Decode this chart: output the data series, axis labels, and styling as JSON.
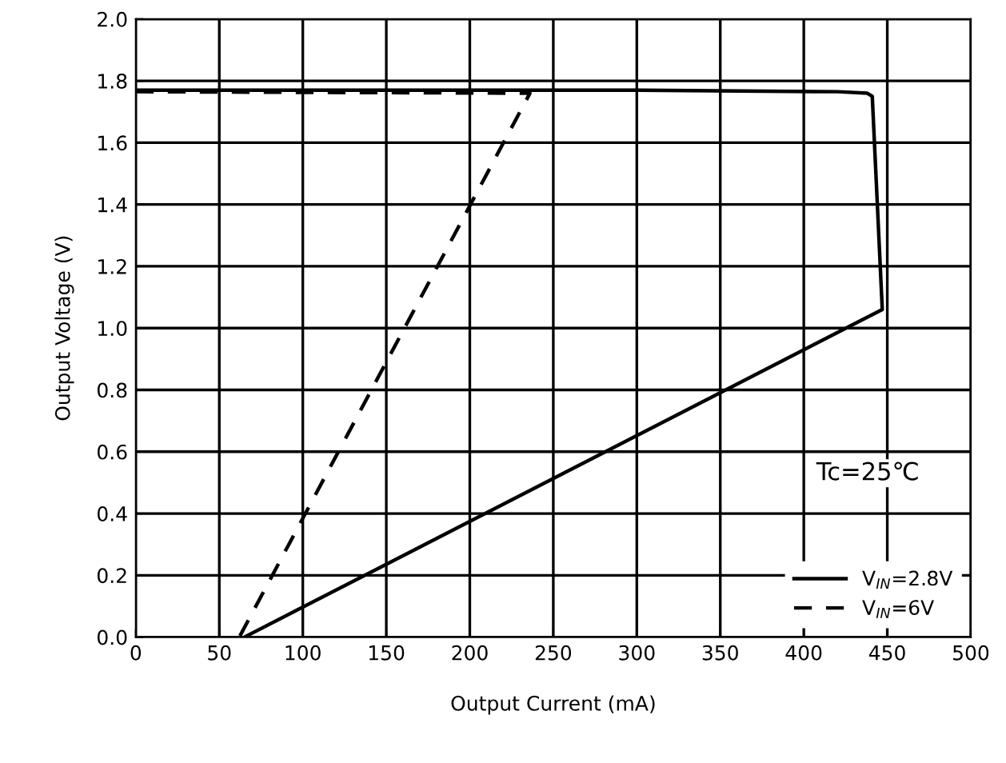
{
  "chart_data": {
    "type": "line",
    "xlabel": "Output Current (mA)",
    "ylabel": "Output Voltage (V)",
    "series": [
      {
        "name": "V$_{IN}$=2.8V",
        "color": "#000000",
        "line_style": "solid",
        "x": [
          0,
          300,
          420,
          438,
          441,
          447,
          65
        ],
        "values": [
          1.77,
          1.77,
          1.765,
          1.76,
          1.75,
          1.06,
          0
        ]
      },
      {
        "name": "V$_{IN}$=6V",
        "color": "#000000",
        "line_style": "dashed",
        "x": [
          0,
          236,
          62
        ],
        "values": [
          1.765,
          1.76,
          0
        ]
      }
    ],
    "xlim": [
      0,
      500
    ],
    "xticks": [
      0,
      50,
      100,
      150,
      200,
      250,
      300,
      350,
      400,
      450,
      500
    ],
    "ylim": [
      0,
      2.0
    ],
    "yticks": [
      {
        "value": 0,
        "label": "0.0"
      },
      {
        "value": 0.2,
        "label": "0.2"
      },
      {
        "value": 0.4,
        "label": "0.4"
      },
      {
        "value": 0.6,
        "label": "0.6"
      },
      {
        "value": 0.8,
        "label": "0.8"
      },
      {
        "value": 1.0,
        "label": "1.0"
      },
      {
        "value": 1.2,
        "label": "1.2"
      },
      {
        "value": 1.4,
        "label": "1.4"
      },
      {
        "value": 1.6,
        "label": "1.6"
      },
      {
        "value": 1.8,
        "label": "1.8"
      },
      {
        "value": 2.0,
        "label": "2.0"
      }
    ],
    "grid": true,
    "legend": "bottom right",
    "marker": "none",
    "annotations": [
      "Tc=25℃"
    ]
  }
}
